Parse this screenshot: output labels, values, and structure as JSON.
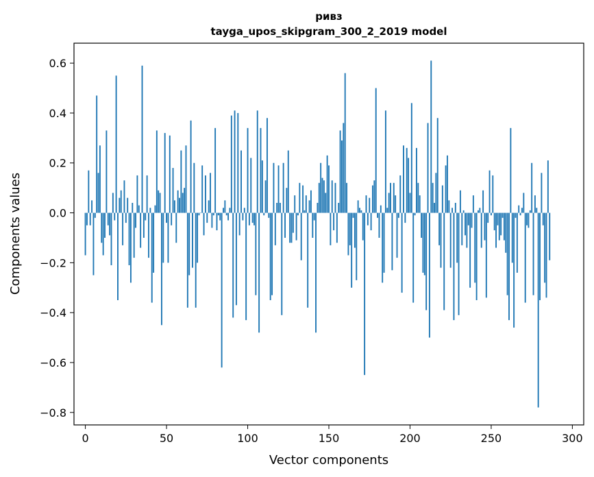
{
  "chart_data": {
    "type": "bar",
    "title": "ривз",
    "subtitle": "tayga_upos_skipgram_300_2_2019 model",
    "xlabel": "Vector components",
    "ylabel": "Components values",
    "xlim": [
      -7,
      307
    ],
    "ylim": [
      -0.85,
      0.68
    ],
    "xticks": [
      0,
      50,
      100,
      150,
      200,
      250,
      300
    ],
    "yticks": [
      -0.8,
      -0.6,
      -0.4,
      -0.2,
      0.0,
      0.2,
      0.4,
      0.6
    ],
    "xtick_labels": [
      "0",
      "50",
      "100",
      "150",
      "200",
      "250",
      "300"
    ],
    "ytick_labels": [
      "−0.8",
      "−0.6",
      "−0.4",
      "−0.2",
      "0.0",
      "0.2",
      "0.4",
      "0.6"
    ],
    "bar_color": "#1f77b4",
    "x_start": 0,
    "values": [
      -0.17,
      -0.05,
      0.17,
      -0.05,
      0.05,
      -0.25,
      -0.02,
      0.47,
      0.16,
      0.27,
      -0.12,
      -0.17,
      -0.1,
      0.33,
      -0.05,
      -0.09,
      -0.21,
      0.08,
      -0.03,
      0.55,
      -0.35,
      0.06,
      0.09,
      -0.13,
      0.13,
      -0.04,
      0.06,
      -0.21,
      -0.28,
      0.04,
      -0.18,
      -0.06,
      0.15,
      0.03,
      -0.14,
      0.59,
      -0.1,
      -0.03,
      0.15,
      -0.18,
      0.02,
      -0.36,
      -0.24,
      0.03,
      0.33,
      0.09,
      0.08,
      -0.45,
      -0.2,
      0.32,
      -0.04,
      -0.2,
      0.31,
      -0.05,
      0.18,
      0.05,
      -0.12,
      0.09,
      0.06,
      0.25,
      0.08,
      0.1,
      0.27,
      -0.38,
      -0.25,
      0.37,
      -0.22,
      0.2,
      -0.38,
      -0.2,
      -0.01,
      0.0,
      0.19,
      -0.09,
      0.15,
      -0.04,
      0.05,
      0.16,
      -0.06,
      -0.01,
      0.34,
      -0.07,
      -0.01,
      -0.03,
      -0.62,
      0.02,
      0.05,
      -0.01,
      -0.03,
      0.02,
      0.39,
      -0.42,
      0.41,
      -0.37,
      0.4,
      -0.09,
      0.25,
      -0.03,
      0.02,
      -0.43,
      0.34,
      -0.05,
      0.22,
      -0.04,
      -0.05,
      -0.33,
      0.41,
      -0.48,
      0.34,
      0.21,
      -0.01,
      0.13,
      0.38,
      -0.02,
      -0.35,
      -0.33,
      0.2,
      -0.13,
      0.04,
      0.19,
      0.04,
      -0.41,
      0.2,
      -0.1,
      0.1,
      0.25,
      -0.12,
      -0.12,
      -0.08,
      0.07,
      -0.11,
      -0.01,
      0.12,
      -0.19,
      0.11,
      0.01,
      0.07,
      -0.38,
      0.05,
      0.09,
      -0.1,
      -0.03,
      -0.48,
      0.04,
      0.12,
      0.2,
      0.14,
      0.13,
      0.08,
      0.23,
      0.19,
      -0.13,
      0.13,
      -0.07,
      0.12,
      -0.12,
      0.04,
      0.33,
      0.29,
      0.36,
      0.56,
      0.12,
      -0.17,
      -0.13,
      -0.3,
      -0.02,
      -0.14,
      -0.27,
      0.05,
      0.02,
      0.01,
      -0.11,
      -0.65,
      0.07,
      -0.05,
      0.06,
      -0.07,
      0.11,
      0.13,
      0.5,
      -0.02,
      -0.1,
      0.03,
      -0.28,
      -0.24,
      0.41,
      0.02,
      0.08,
      0.12,
      -0.23,
      0.12,
      0.07,
      -0.18,
      -0.02,
      0.15,
      -0.32,
      0.27,
      -0.04,
      0.26,
      0.22,
      0.08,
      0.44,
      -0.36,
      -0.01,
      0.26,
      0.12,
      0.07,
      -0.1,
      -0.24,
      -0.25,
      -0.39,
      0.36,
      -0.5,
      0.61,
      0.12,
      0.04,
      0.16,
      0.38,
      -0.13,
      -0.22,
      0.11,
      -0.39,
      0.19,
      0.23,
      0.05,
      -0.22,
      0.02,
      -0.43,
      0.04,
      -0.2,
      -0.41,
      0.09,
      -0.13,
      0.01,
      -0.09,
      -0.14,
      -0.05,
      -0.3,
      -0.06,
      0.07,
      -0.28,
      -0.35,
      0.01,
      0.02,
      -0.14,
      0.09,
      -0.11,
      -0.34,
      -0.04,
      0.17,
      -0.01,
      0.15,
      -0.07,
      -0.14,
      -0.05,
      -0.11,
      -0.09,
      -0.02,
      -0.11,
      -0.16,
      -0.33,
      -0.43,
      0.34,
      -0.2,
      -0.46,
      -0.02,
      -0.24,
      0.03,
      -0.01,
      0.02,
      0.08,
      -0.36,
      -0.05,
      -0.06,
      0.01,
      0.2,
      -0.33,
      0.07,
      0.02,
      -0.78,
      -0.35,
      0.16,
      -0.05,
      -0.28,
      -0.34,
      0.21,
      -0.19
    ]
  }
}
